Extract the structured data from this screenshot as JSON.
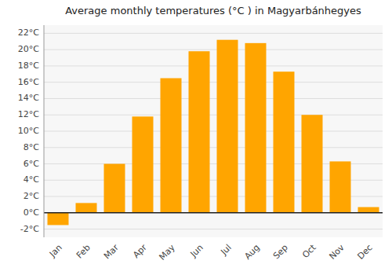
{
  "chart_data": {
    "type": "bar",
    "title": "Average monthly temperatures (°C ) in Magyarbánhegyes",
    "categories": [
      "Jan",
      "Feb",
      "Mar",
      "Apr",
      "May",
      "Jun",
      "Jul",
      "Aug",
      "Sep",
      "Oct",
      "Nov",
      "Dec"
    ],
    "values": [
      -1.5,
      1.2,
      6.0,
      11.8,
      16.5,
      19.8,
      21.2,
      20.8,
      17.3,
      12.0,
      6.3,
      0.7
    ],
    "color": "#FFA500",
    "ylim": [
      -3,
      23
    ],
    "yticks": [
      {
        "value": -2,
        "label": "-2°C"
      },
      {
        "value": 0,
        "label": "0°C"
      },
      {
        "value": 2,
        "label": "2°C"
      },
      {
        "value": 4,
        "label": "4°C"
      },
      {
        "value": 6,
        "label": "6°C"
      },
      {
        "value": 8,
        "label": "8°C"
      },
      {
        "value": 10,
        "label": "10°C"
      },
      {
        "value": 12,
        "label": "12°C"
      },
      {
        "value": 14,
        "label": "14°C"
      },
      {
        "value": 16,
        "label": "16°C"
      },
      {
        "value": 18,
        "label": "18°C"
      },
      {
        "value": 20,
        "label": "20°C"
      },
      {
        "value": 22,
        "label": "22°C"
      }
    ],
    "grid": true
  }
}
